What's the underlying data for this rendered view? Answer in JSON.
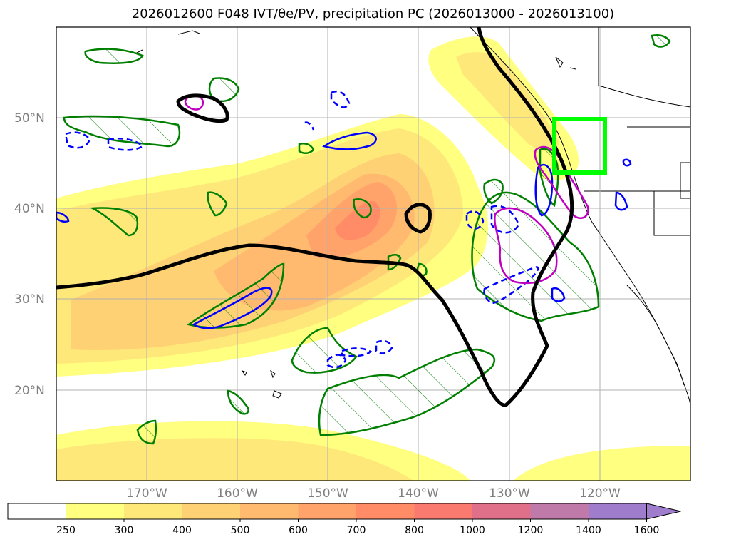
{
  "title": "2026012600 F048 IVT/θe/PV, precipitation PC (2026013000 - 2026013100)",
  "latitude_labels": [
    "50°N",
    "40°N",
    "30°N",
    "20°N"
  ],
  "longitude_labels": [
    "170°W",
    "160°W",
    "150°W",
    "140°W",
    "130°W",
    "120°W"
  ],
  "colorbar": {
    "ticks": [
      "250",
      "300",
      "400",
      "500",
      "600",
      "700",
      "800",
      "1000",
      "1200",
      "1400",
      "1600"
    ],
    "colors": [
      "#ffffff",
      "#ffff80",
      "#ffe87a",
      "#ffd175",
      "#ffba70",
      "#ffa36b",
      "#ff8c66",
      "#fa7a70",
      "#e0708a",
      "#c07aaa",
      "#a07ccc"
    ],
    "extend": "max"
  },
  "overlays": {
    "target_box_color": "#00ff00",
    "theta_e_contour_color": "#000000",
    "pv_positive_color": "#008000",
    "pv_negative_color": "#0000ff",
    "precip_contour_color": "#c000c0"
  }
}
